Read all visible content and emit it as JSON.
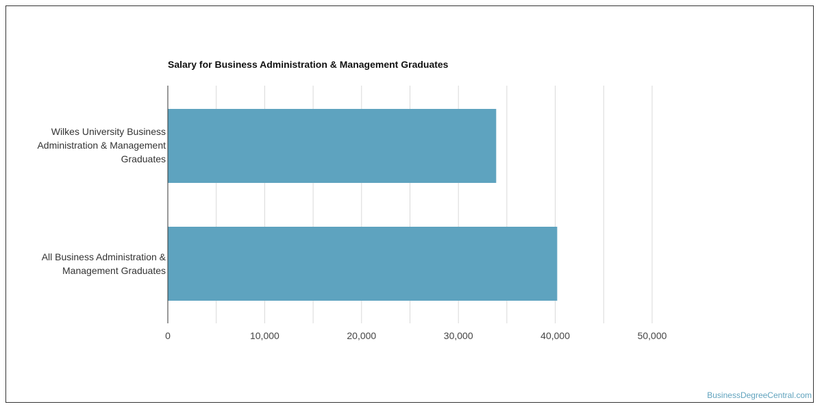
{
  "watermark": "BusinessDegreeCentral.com",
  "colors": {
    "bar": "#5ea3bf",
    "grid": "#d9d9d9",
    "axis": "#333333"
  },
  "chart_data": {
    "type": "bar",
    "orientation": "horizontal",
    "title": "Salary for Business Administration & Management Graduates",
    "categories": [
      [
        "Wilkes University Business",
        "Administration & Management",
        "Graduates"
      ],
      [
        "All Business Administration &",
        "Management Graduates"
      ]
    ],
    "values": [
      33900,
      40200
    ],
    "xlim": [
      0,
      50000
    ],
    "xticks": [
      0,
      10000,
      20000,
      30000,
      40000,
      50000
    ],
    "xtick_labels": [
      "0",
      "10,000",
      "20,000",
      "30,000",
      "40,000",
      "50,000"
    ],
    "grid": true,
    "xlabel": "",
    "ylabel": ""
  }
}
